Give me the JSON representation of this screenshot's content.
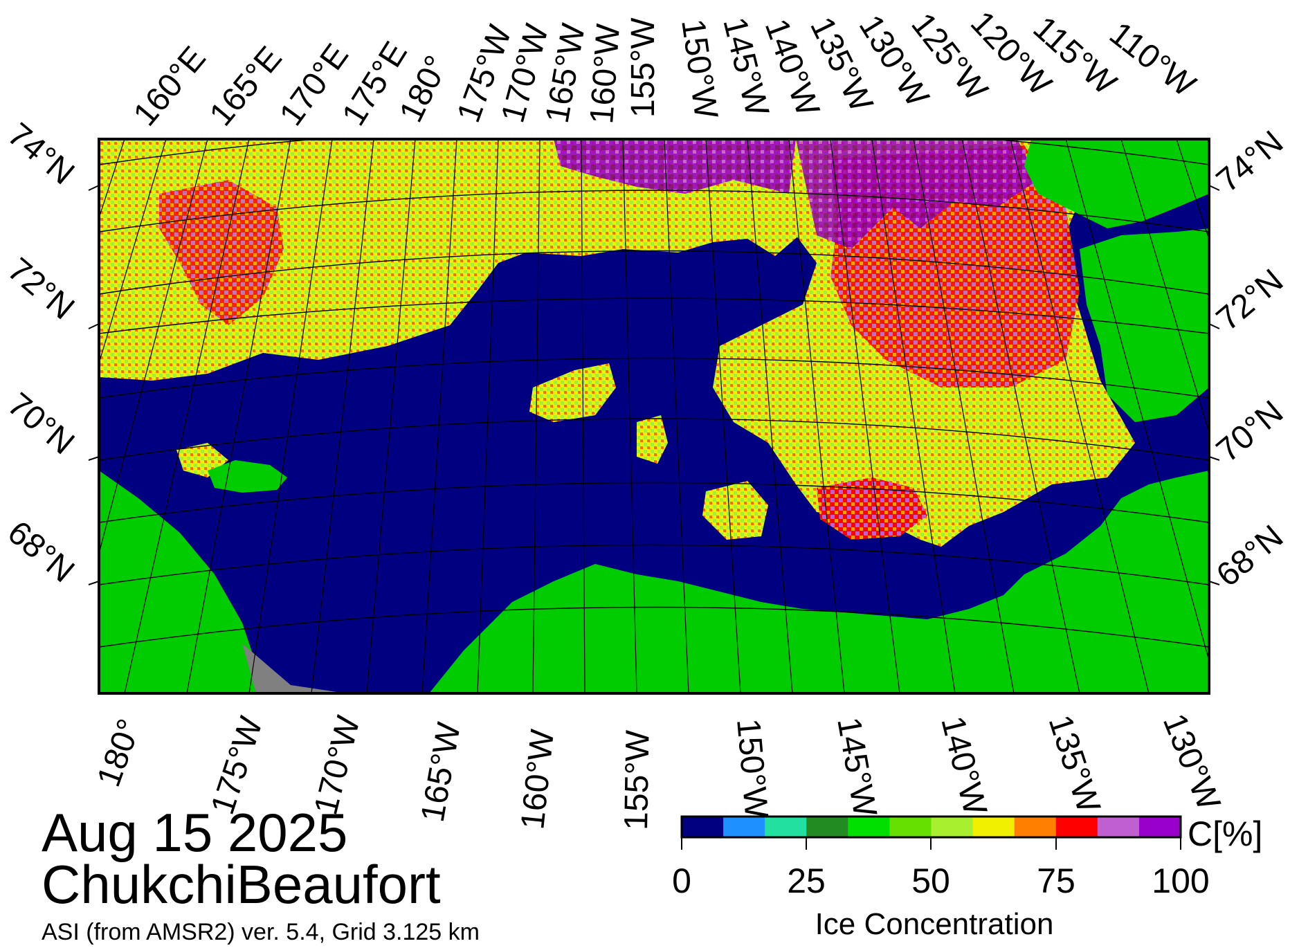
{
  "map": {
    "top_lon_labels": [
      "160°E",
      "165°E",
      "170°E",
      "175°E",
      "180°",
      "175°W",
      "170°W",
      "165°W",
      "160°W",
      "155°W",
      "150°W",
      "145°W",
      "140°W",
      "135°W",
      "130°W",
      "125°W",
      "120°W",
      "115°W",
      "110°W"
    ],
    "bottom_lon_labels": [
      "180°",
      "175°W",
      "170°W",
      "165°W",
      "160°W",
      "155°W",
      "150°W",
      "145°W",
      "140°W",
      "135°W",
      "130°W"
    ],
    "left_lat_labels": [
      "74°N",
      "72°N",
      "70°N",
      "68°N"
    ],
    "right_lat_labels": [
      "74°N",
      "72°N",
      "70°N",
      "68°N"
    ],
    "colors": {
      "ocean": "#000080",
      "land": "#00cc00",
      "nodata": "#808080"
    }
  },
  "info": {
    "date": "Aug 15 2025",
    "region": "ChukchiBeaufort",
    "source": "ASI (from AMSR2) ver. 5.4,  Grid 3.125 km"
  },
  "colorbar": {
    "unit": "C[%]",
    "title": "Ice Concentration",
    "ticks": [
      "0",
      "25",
      "50",
      "75",
      "100"
    ],
    "colors": [
      "#000080",
      "#1e90ff",
      "#22e0a0",
      "#228b22",
      "#00e000",
      "#66e000",
      "#a8ef30",
      "#f0f000",
      "#ff8000",
      "#ff0000",
      "#c060d0",
      "#9900cc"
    ]
  }
}
